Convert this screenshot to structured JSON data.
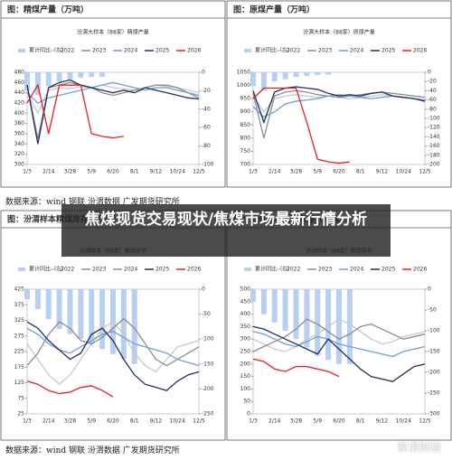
{
  "overlay_title": "焦煤现货交易现状/焦煤市场最新行情分析",
  "sources": [
    "数据来源：wind 钢联 汾渭数据 广发期货研究所",
    "数据来源：wind 钢联 汾渭数据 广发期货研究所"
  ],
  "watermark": "新浪财经",
  "chart_data": [
    {
      "type": "line",
      "title": "图：精煤产量（万吨）",
      "subtitle": "汾渭大样本（88家）精煤产量",
      "categories": [
        "1/3",
        null,
        "2/14",
        null,
        "3/28",
        null,
        "5/9",
        null,
        "6/20",
        null,
        "8/1",
        null,
        "9/12",
        null,
        "10/24",
        null,
        "12/5"
      ],
      "ylim": [
        300,
        480
      ],
      "yticks": [
        300,
        320,
        340,
        360,
        380,
        400,
        420,
        440,
        460,
        480
      ],
      "y2lim": [
        -100,
        0
      ],
      "y2ticks": [
        -100,
        -80,
        -60,
        -40,
        -20,
        0
      ],
      "series": [
        {
          "name": "累计同比（右）",
          "color": "#b8d0ee",
          "axis": "y2",
          "type": "bar",
          "values": [
            -20,
            -25,
            -15,
            -10,
            -8,
            -6,
            -5,
            -5,
            null,
            null,
            null,
            null,
            null,
            null,
            null,
            null,
            null
          ]
        },
        {
          "name": "2022",
          "color": "#c8c8c8",
          "values": [
            440,
            400,
            445,
            450,
            448,
            452,
            450,
            455,
            450,
            448,
            445,
            450,
            455,
            452,
            450,
            445,
            440
          ]
        },
        {
          "name": "2023",
          "color": "#8c8c8c",
          "values": [
            455,
            350,
            450,
            455,
            460,
            455,
            450,
            440,
            435,
            440,
            445,
            450,
            455,
            455,
            450,
            440,
            430
          ]
        },
        {
          "name": "2024",
          "color": "#6f9fd8",
          "values": [
            440,
            420,
            430,
            435,
            440,
            445,
            450,
            455,
            460,
            455,
            450,
            445,
            450,
            450,
            445,
            440,
            435
          ]
        },
        {
          "name": "2025",
          "color": "#1f2f5f",
          "values": [
            455,
            340,
            450,
            460,
            465,
            455,
            450,
            445,
            440,
            445,
            440,
            450,
            445,
            440,
            435,
            430,
            428
          ]
        },
        {
          "name": "2026",
          "color": "#e8201e",
          "values": [
            420,
            455,
            360,
            455,
            455,
            455,
            360,
            355,
            352,
            355,
            null,
            null,
            null,
            null,
            null,
            null,
            null
          ]
        }
      ]
    },
    {
      "type": "line",
      "title": "图：原煤产量（万吨）",
      "subtitle": "汾渭大样本（88家）原煤产量",
      "categories": [
        "1/3",
        null,
        "2/14",
        null,
        "3/28",
        null,
        "5/9",
        null,
        "6/20",
        null,
        "8/1",
        null,
        "9/12",
        null,
        "10/24",
        null,
        "12/5"
      ],
      "ylim": [
        700,
        1050
      ],
      "yticks": [
        700,
        750,
        800,
        850,
        900,
        950,
        1000,
        1050
      ],
      "y2lim": [
        -200,
        0
      ],
      "y2ticks": [
        -200,
        -180,
        -160,
        -140,
        -120,
        -100,
        -80,
        -60,
        -40,
        -20,
        0
      ],
      "series": [
        {
          "name": "累计同比（右）",
          "color": "#b8d0ee",
          "axis": "y2",
          "type": "bar",
          "values": [
            -30,
            -40,
            -20,
            -15,
            -10,
            -8,
            -6,
            -5,
            null,
            null,
            null,
            null,
            null,
            null,
            null,
            null,
            null
          ]
        },
        {
          "name": "2022",
          "color": "#c8c8c8",
          "values": [
            960,
            900,
            950,
            960,
            965,
            960,
            955,
            960,
            955,
            950,
            955,
            960,
            965,
            960,
            955,
            950,
            945
          ]
        },
        {
          "name": "2023",
          "color": "#8c8c8c",
          "values": [
            970,
            800,
            960,
            975,
            980,
            975,
            965,
            960,
            955,
            960,
            965,
            970,
            975,
            970,
            965,
            960,
            955
          ]
        },
        {
          "name": "2024",
          "color": "#6f9fd8",
          "values": [
            920,
            880,
            900,
            930,
            940,
            945,
            950,
            960,
            965,
            960,
            955,
            950,
            955,
            960,
            955,
            950,
            945
          ]
        },
        {
          "name": "2025",
          "color": "#1f2f5f",
          "values": [
            980,
            860,
            975,
            990,
            995,
            990,
            985,
            970,
            960,
            965,
            960,
            970,
            975,
            960,
            955,
            950,
            940
          ]
        },
        {
          "name": "2026",
          "color": "#e8201e",
          "values": [
            950,
            990,
            990,
            990,
            990,
            860,
            720,
            710,
            705,
            710,
            null,
            null,
            null,
            null,
            null,
            null,
            null
          ]
        }
      ]
    },
    {
      "type": "line",
      "title": "图：汾渭样本精煤库存（万吨）",
      "subtitle": "汾渭样本（88家）精煤库存",
      "categories": [
        "1/3",
        null,
        "2/14",
        null,
        "3/28",
        null,
        "5/9",
        null,
        "6/20",
        null,
        "8/1",
        null,
        "9/12",
        null,
        "10/24",
        null,
        "12/5"
      ],
      "ylim": [
        25,
        425
      ],
      "yticks": [
        25,
        75,
        125,
        175,
        225,
        275,
        325,
        375,
        425
      ],
      "y2lim": [
        -250,
        0
      ],
      "y2ticks": [
        -250,
        -200,
        -150,
        -100,
        -50,
        0
      ],
      "series": [
        {
          "name": "累计同比（右）",
          "color": "#b8d0ee",
          "axis": "y2",
          "type": "bar",
          "values": [
            -20,
            -40,
            -60,
            -80,
            -90,
            -100,
            -110,
            -120,
            -130,
            -140,
            -150,
            null,
            null,
            null,
            null,
            null,
            null
          ]
        },
        {
          "name": "2022",
          "color": "#c8c8c8",
          "values": [
            250,
            200,
            150,
            120,
            150,
            200,
            250,
            300,
            320,
            280,
            220,
            180,
            160,
            200,
            240,
            250,
            260
          ]
        },
        {
          "name": "2023",
          "color": "#8c8c8c",
          "values": [
            180,
            220,
            280,
            320,
            300,
            260,
            250,
            270,
            300,
            330,
            300,
            250,
            200,
            180,
            200,
            220,
            240
          ]
        },
        {
          "name": "2024",
          "color": "#6f9fd8",
          "values": [
            300,
            280,
            250,
            230,
            220,
            240,
            260,
            280,
            290,
            270,
            250,
            240,
            230,
            220,
            200,
            190,
            180
          ]
        },
        {
          "name": "2025",
          "color": "#1f2f5f",
          "values": [
            320,
            300,
            260,
            230,
            200,
            220,
            280,
            300,
            260,
            200,
            150,
            120,
            110,
            100,
            130,
            150,
            160
          ]
        },
        {
          "name": "2026",
          "color": "#e8201e",
          "values": [
            130,
            120,
            100,
            90,
            95,
            110,
            115,
            100,
            80,
            null,
            null,
            null,
            null,
            null,
            null,
            null,
            null
          ]
        }
      ]
    },
    {
      "type": "line",
      "title": "图：汾渭样本原煤库存（万吨）",
      "subtitle": "汾渭样本（88家）原煤库存",
      "categories": [
        "1/3",
        null,
        "2/14",
        null,
        "3/28",
        null,
        "5/9",
        null,
        "6/20",
        null,
        "8/1",
        null,
        "9/12",
        null,
        "10/24",
        null,
        "12/5"
      ],
      "ylim": [
        0,
        500
      ],
      "yticks": [
        0,
        50,
        100,
        150,
        200,
        250,
        300,
        350,
        400,
        450,
        500
      ],
      "y2lim": [
        -300,
        0
      ],
      "y2ticks": [
        -300,
        -250,
        -200,
        -150,
        -100,
        -50,
        0
      ],
      "series": [
        {
          "name": "累计同比（右）",
          "color": "#b8d0ee",
          "axis": "y2",
          "type": "bar",
          "values": [
            -30,
            -60,
            -80,
            -100,
            -120,
            -140,
            -160,
            -170,
            -180,
            -180,
            null,
            null,
            null,
            null,
            null,
            null,
            null
          ]
        },
        {
          "name": "2022",
          "color": "#c8c8c8",
          "values": [
            300,
            280,
            260,
            250,
            270,
            300,
            320,
            350,
            380,
            360,
            330,
            300,
            280,
            290,
            310,
            320,
            330
          ]
        },
        {
          "name": "2023",
          "color": "#8c8c8c",
          "values": [
            250,
            270,
            290,
            310,
            340,
            380,
            360,
            330,
            300,
            320,
            350,
            360,
            340,
            320,
            300,
            310,
            320
          ]
        },
        {
          "name": "2024",
          "color": "#6f9fd8",
          "values": [
            330,
            320,
            300,
            280,
            270,
            290,
            310,
            300,
            280,
            270,
            260,
            250,
            240,
            230,
            250,
            260,
            270
          ]
        },
        {
          "name": "2025",
          "color": "#1f2f5f",
          "values": [
            350,
            340,
            320,
            300,
            280,
            260,
            240,
            300,
            260,
            220,
            180,
            150,
            140,
            130,
            160,
            190,
            200
          ]
        },
        {
          "name": "2026",
          "color": "#e8201e",
          "values": [
            220,
            210,
            180,
            170,
            190,
            190,
            180,
            170,
            150,
            null,
            null,
            null,
            null,
            null,
            null,
            null,
            null
          ]
        }
      ]
    }
  ]
}
